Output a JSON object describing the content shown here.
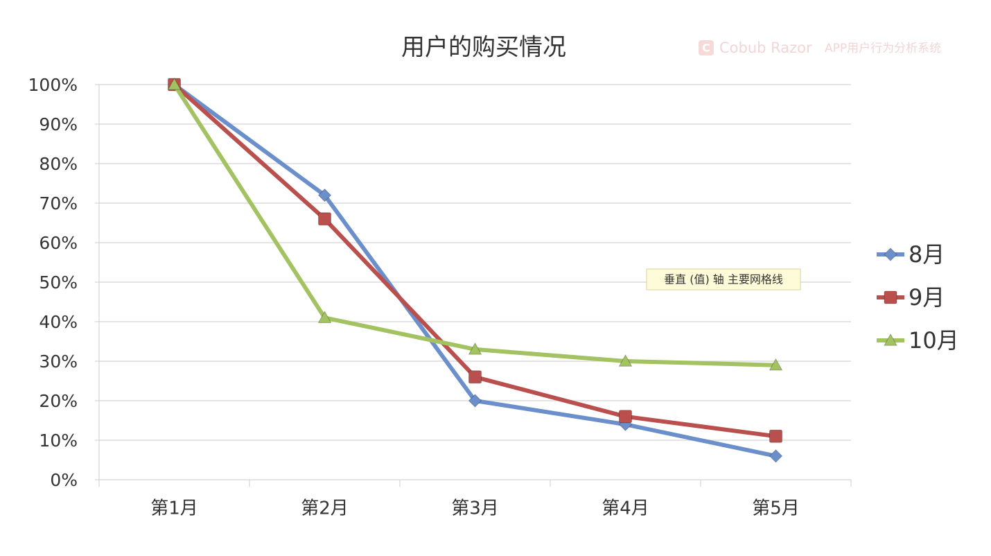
{
  "chart_data": {
    "type": "line",
    "title": "用户的购买情况",
    "watermark": [
      "Cobub Razor",
      "APP用户行为分析系统"
    ],
    "annotation": "垂直 (值) 轴 主要网格线",
    "categories": [
      "第1月",
      "第2月",
      "第3月",
      "第4月",
      "第5月"
    ],
    "series": [
      {
        "name": "8月",
        "color": "#6b8fcb",
        "marker": "diamond",
        "values": [
          100,
          72,
          20,
          14,
          6
        ]
      },
      {
        "name": "9月",
        "color": "#b9504d",
        "marker": "square",
        "values": [
          100,
          66,
          26,
          16,
          11
        ]
      },
      {
        "name": "10月",
        "color": "#a3c261",
        "marker": "triangle",
        "values": [
          100,
          41,
          33,
          30,
          29
        ]
      }
    ],
    "ylim": [
      0,
      100
    ],
    "yticks": [
      {
        "value": 0,
        "label": "0%"
      },
      {
        "value": 10,
        "label": "10%"
      },
      {
        "value": 20,
        "label": "20%"
      },
      {
        "value": 30,
        "label": "30%"
      },
      {
        "value": 40,
        "label": "40%"
      },
      {
        "value": 50,
        "label": "50%"
      },
      {
        "value": 60,
        "label": "60%"
      },
      {
        "value": 70,
        "label": "70%"
      },
      {
        "value": 80,
        "label": "80%"
      },
      {
        "value": 90,
        "label": "90%"
      },
      {
        "value": 100,
        "label": "100%"
      }
    ],
    "grid": true,
    "legend": "right"
  }
}
